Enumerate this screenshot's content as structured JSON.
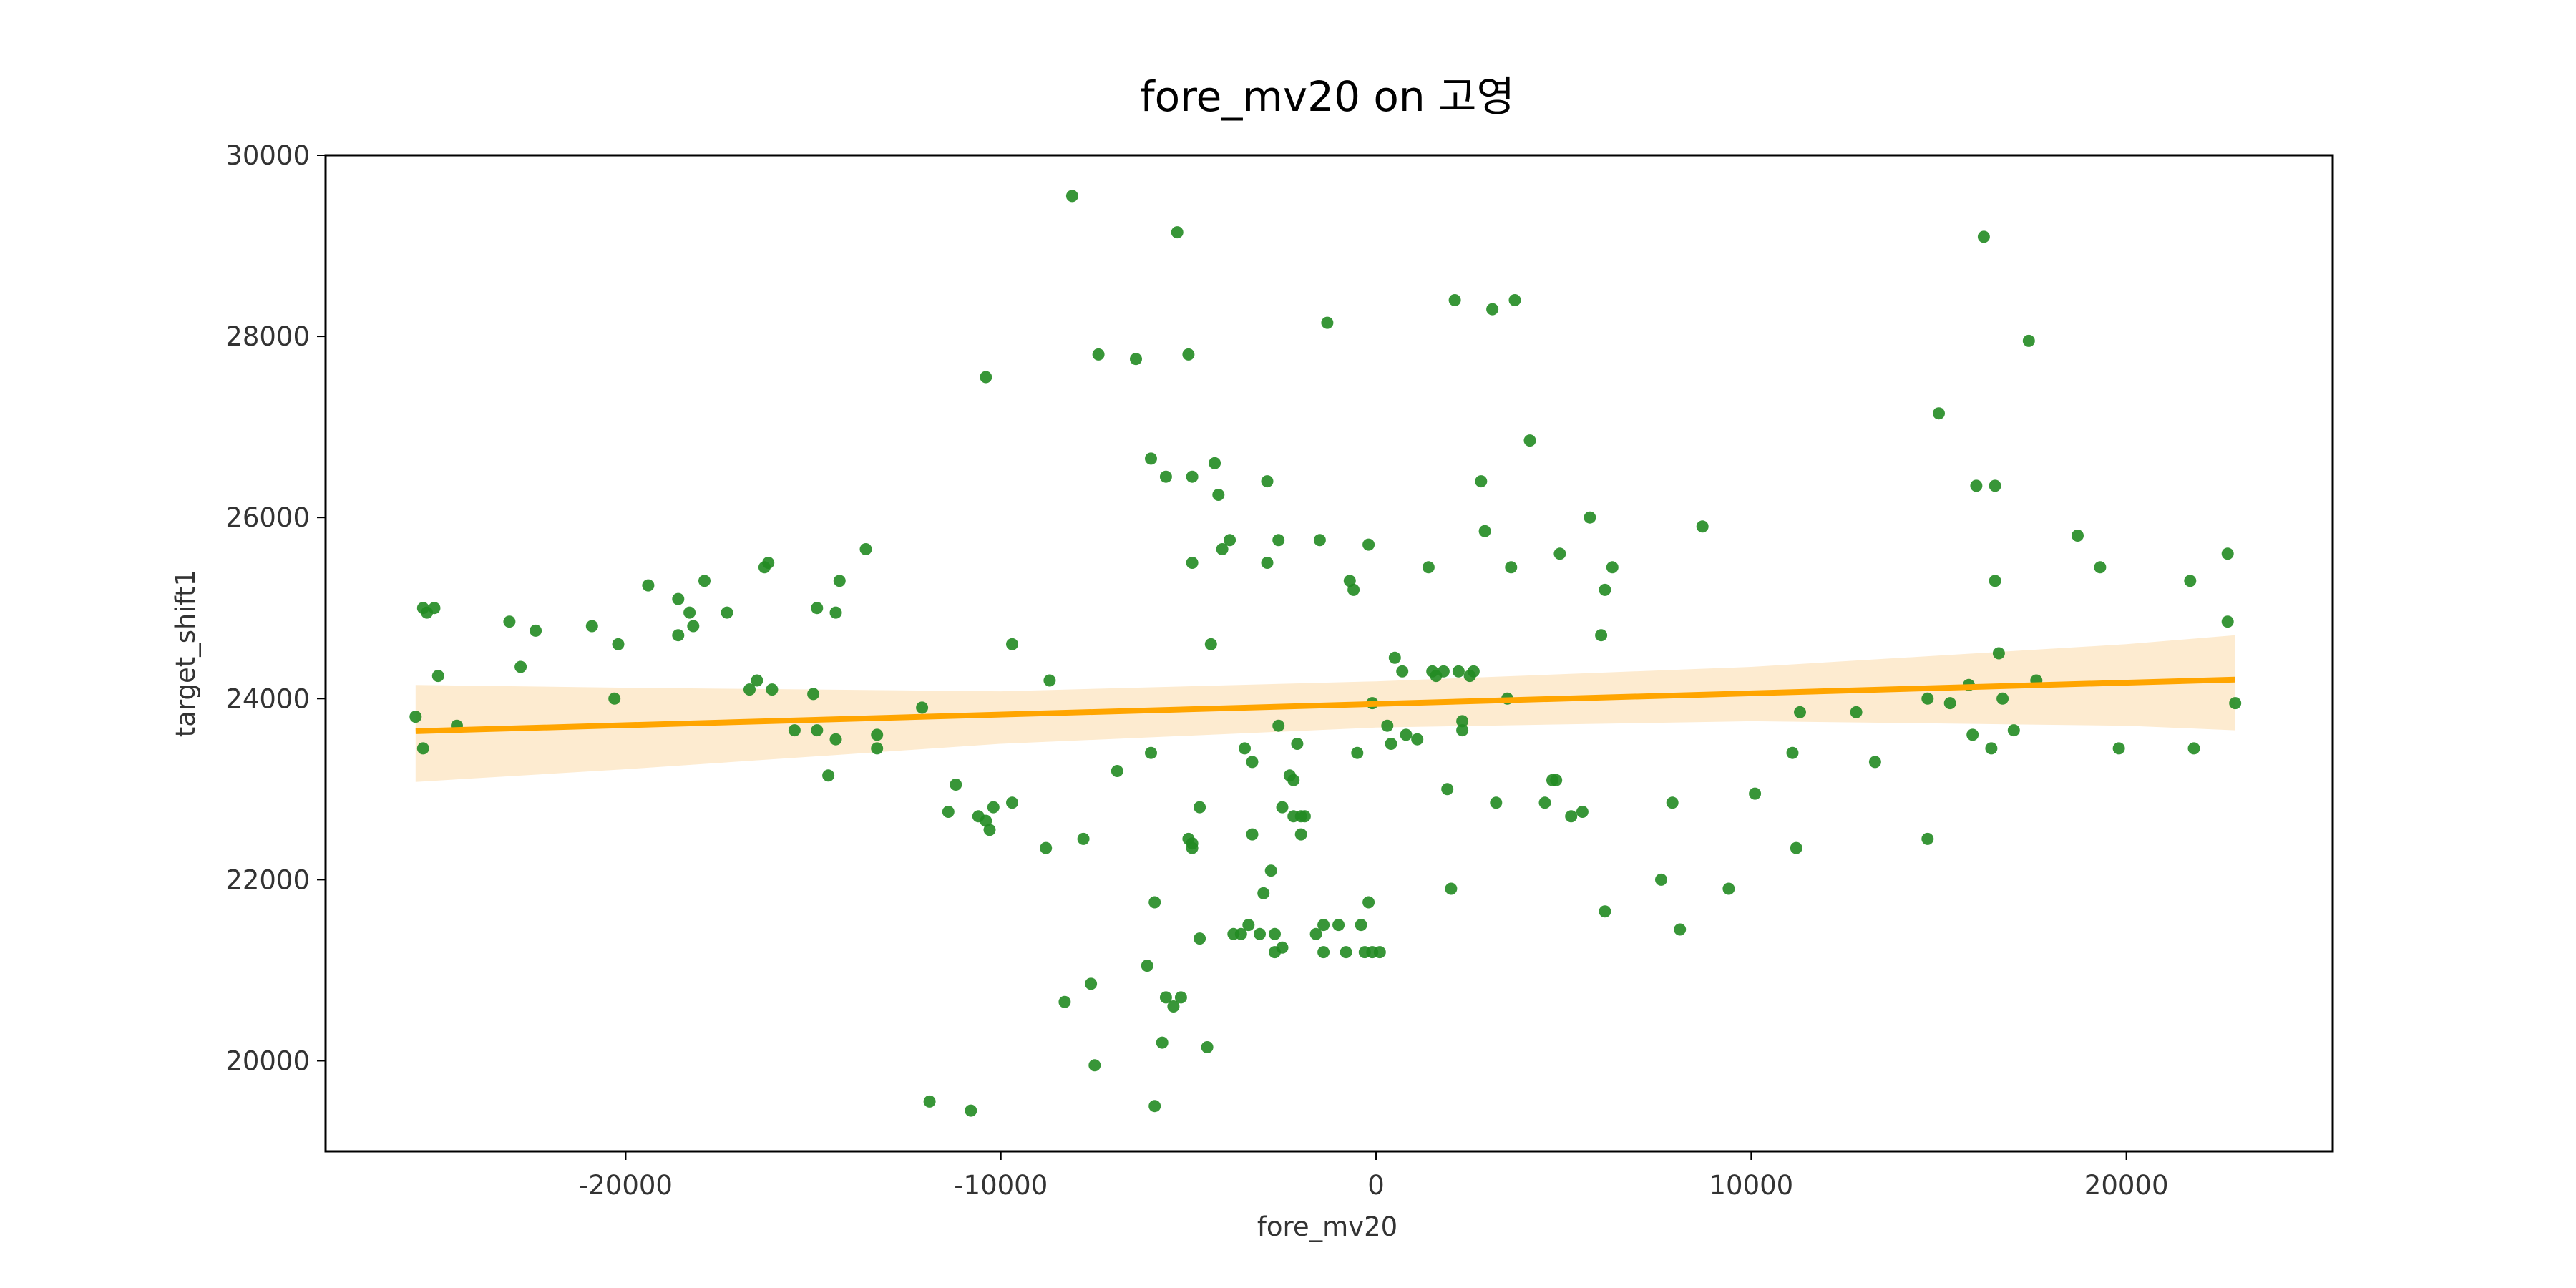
{
  "chart_data": {
    "type": "scatter",
    "title": "fore_mv20 on 고영",
    "xlabel": "fore_mv20",
    "ylabel": "target_shift1",
    "xlim": [
      -28000,
      25500
    ],
    "ylim": [
      19000,
      30000
    ],
    "xticks": [
      -20000,
      -10000,
      0,
      10000,
      20000
    ],
    "xtick_labels": [
      "-20000",
      "-10000",
      "0",
      "10000",
      "20000"
    ],
    "yticks": [
      20000,
      22000,
      24000,
      26000,
      28000,
      30000
    ],
    "ytick_labels": [
      "20000",
      "22000",
      "24000",
      "26000",
      "28000",
      "30000"
    ],
    "grid": false,
    "colors": {
      "points": "#228B22",
      "regression_line": "#FFA500",
      "confidence_band": "#FDEBD0"
    },
    "regression": {
      "x": [
        -25600,
        22900
      ],
      "y": [
        23640,
        24210
      ]
    },
    "confidence_band": {
      "x": [
        -25600,
        -20000,
        -10000,
        0,
        10000,
        20000,
        22900
      ],
      "upper": [
        24150,
        24120,
        24080,
        24190,
        24350,
        24600,
        24700
      ],
      "lower": [
        23080,
        23220,
        23500,
        23680,
        23750,
        23700,
        23650
      ]
    },
    "points": [
      [
        -25600,
        23800
      ],
      [
        -25400,
        23450
      ],
      [
        -25400,
        25000
      ],
      [
        -25300,
        24950
      ],
      [
        -25100,
        25000
      ],
      [
        -25000,
        24250
      ],
      [
        -24500,
        23700
      ],
      [
        -23100,
        24850
      ],
      [
        -22800,
        24350
      ],
      [
        -22400,
        24750
      ],
      [
        -20900,
        24800
      ],
      [
        -20300,
        24000
      ],
      [
        -20200,
        24600
      ],
      [
        -19400,
        25250
      ],
      [
        -18600,
        25100
      ],
      [
        -18600,
        24700
      ],
      [
        -18300,
        24950
      ],
      [
        -18200,
        24800
      ],
      [
        -17900,
        25300
      ],
      [
        -17300,
        24950
      ],
      [
        -16700,
        24100
      ],
      [
        -16500,
        24200
      ],
      [
        -16300,
        25450
      ],
      [
        -16200,
        25500
      ],
      [
        -16100,
        24100
      ],
      [
        -15500,
        23650
      ],
      [
        -15000,
        24050
      ],
      [
        -14900,
        23650
      ],
      [
        -14900,
        25000
      ],
      [
        -14600,
        23150
      ],
      [
        -14400,
        24950
      ],
      [
        -14400,
        23550
      ],
      [
        -14300,
        25300
      ],
      [
        -13600,
        25650
      ],
      [
        -13300,
        23600
      ],
      [
        -13300,
        23450
      ],
      [
        -12100,
        23900
      ],
      [
        -11900,
        19550
      ],
      [
        -11400,
        22750
      ],
      [
        -11200,
        23050
      ],
      [
        -10800,
        19450
      ],
      [
        -10600,
        22700
      ],
      [
        -10400,
        27550
      ],
      [
        -10400,
        22650
      ],
      [
        -10300,
        22550
      ],
      [
        -10200,
        22800
      ],
      [
        -9700,
        22850
      ],
      [
        -9700,
        24600
      ],
      [
        -8800,
        22350
      ],
      [
        -8700,
        24200
      ],
      [
        -8300,
        20650
      ],
      [
        -8100,
        29550
      ],
      [
        -7800,
        22450
      ],
      [
        -7600,
        20850
      ],
      [
        -7500,
        19950
      ],
      [
        -7400,
        27800
      ],
      [
        -6900,
        23200
      ],
      [
        -6400,
        27750
      ],
      [
        -6100,
        21050
      ],
      [
        -6000,
        26650
      ],
      [
        -6000,
        23400
      ],
      [
        -5900,
        21750
      ],
      [
        -5900,
        19500
      ],
      [
        -5700,
        20200
      ],
      [
        -5600,
        26450
      ],
      [
        -5600,
        20700
      ],
      [
        -5400,
        20600
      ],
      [
        -5300,
        29150
      ],
      [
        -5200,
        20700
      ],
      [
        -5000,
        22450
      ],
      [
        -5000,
        27800
      ],
      [
        -4900,
        22400
      ],
      [
        -4900,
        22350
      ],
      [
        -4900,
        26450
      ],
      [
        -4900,
        25500
      ],
      [
        -4700,
        22800
      ],
      [
        -4700,
        21350
      ],
      [
        -4500,
        20150
      ],
      [
        -4400,
        24600
      ],
      [
        -4300,
        26600
      ],
      [
        -4200,
        26250
      ],
      [
        -4100,
        25650
      ],
      [
        -3900,
        25750
      ],
      [
        -3800,
        21400
      ],
      [
        -3600,
        21400
      ],
      [
        -3500,
        23450
      ],
      [
        -3400,
        21500
      ],
      [
        -3300,
        23300
      ],
      [
        -3300,
        22500
      ],
      [
        -3100,
        21400
      ],
      [
        -3000,
        21850
      ],
      [
        -2900,
        26400
      ],
      [
        -2900,
        25500
      ],
      [
        -2800,
        22100
      ],
      [
        -2700,
        21400
      ],
      [
        -2700,
        21200
      ],
      [
        -2600,
        25750
      ],
      [
        -2600,
        23700
      ],
      [
        -2500,
        21250
      ],
      [
        -2500,
        22800
      ],
      [
        -2300,
        23150
      ],
      [
        -2200,
        23100
      ],
      [
        -2200,
        22700
      ],
      [
        -2100,
        23500
      ],
      [
        -2000,
        22700
      ],
      [
        -2000,
        22500
      ],
      [
        -1900,
        22700
      ],
      [
        -1600,
        21400
      ],
      [
        -1500,
        25750
      ],
      [
        -1400,
        21200
      ],
      [
        -1400,
        21500
      ],
      [
        -1300,
        28150
      ],
      [
        -1000,
        21500
      ],
      [
        -800,
        21200
      ],
      [
        -700,
        25300
      ],
      [
        -600,
        25200
      ],
      [
        -500,
        23400
      ],
      [
        -400,
        21500
      ],
      [
        -300,
        21200
      ],
      [
        -200,
        25700
      ],
      [
        -200,
        21750
      ],
      [
        -100,
        21200
      ],
      [
        -100,
        23950
      ],
      [
        100,
        21200
      ],
      [
        300,
        23700
      ],
      [
        400,
        23500
      ],
      [
        500,
        24450
      ],
      [
        700,
        24300
      ],
      [
        800,
        23600
      ],
      [
        1100,
        23550
      ],
      [
        1400,
        25450
      ],
      [
        1500,
        24300
      ],
      [
        1600,
        24250
      ],
      [
        1800,
        24300
      ],
      [
        1900,
        23000
      ],
      [
        2000,
        21900
      ],
      [
        2100,
        28400
      ],
      [
        2200,
        24300
      ],
      [
        2300,
        23750
      ],
      [
        2300,
        23650
      ],
      [
        2500,
        24250
      ],
      [
        2600,
        24300
      ],
      [
        2800,
        26400
      ],
      [
        2900,
        25850
      ],
      [
        3100,
        28300
      ],
      [
        3200,
        22850
      ],
      [
        3500,
        24000
      ],
      [
        3600,
        25450
      ],
      [
        3700,
        28400
      ],
      [
        4100,
        26850
      ],
      [
        4500,
        22850
      ],
      [
        4700,
        23100
      ],
      [
        4800,
        23100
      ],
      [
        4900,
        25600
      ],
      [
        5200,
        22700
      ],
      [
        5500,
        22750
      ],
      [
        5700,
        26000
      ],
      [
        6000,
        24700
      ],
      [
        6100,
        25200
      ],
      [
        6100,
        21650
      ],
      [
        6300,
        25450
      ],
      [
        7600,
        22000
      ],
      [
        7900,
        22850
      ],
      [
        8100,
        21450
      ],
      [
        8700,
        25900
      ],
      [
        9400,
        21900
      ],
      [
        10100,
        22950
      ],
      [
        11100,
        23400
      ],
      [
        11300,
        23850
      ],
      [
        11200,
        22350
      ],
      [
        12800,
        23850
      ],
      [
        13300,
        23300
      ],
      [
        14700,
        22450
      ],
      [
        14700,
        24000
      ],
      [
        15000,
        27150
      ],
      [
        15300,
        23950
      ],
      [
        15800,
        24150
      ],
      [
        15900,
        23600
      ],
      [
        16000,
        26350
      ],
      [
        16200,
        29100
      ],
      [
        16400,
        23450
      ],
      [
        16500,
        25300
      ],
      [
        16500,
        26350
      ],
      [
        16600,
        24500
      ],
      [
        16700,
        24000
      ],
      [
        17000,
        23650
      ],
      [
        17400,
        27950
      ],
      [
        17600,
        24200
      ],
      [
        18700,
        25800
      ],
      [
        19300,
        25450
      ],
      [
        19800,
        23450
      ],
      [
        21700,
        25300
      ],
      [
        21800,
        23450
      ],
      [
        22700,
        25600
      ],
      [
        22700,
        24850
      ],
      [
        22900,
        23950
      ]
    ]
  }
}
